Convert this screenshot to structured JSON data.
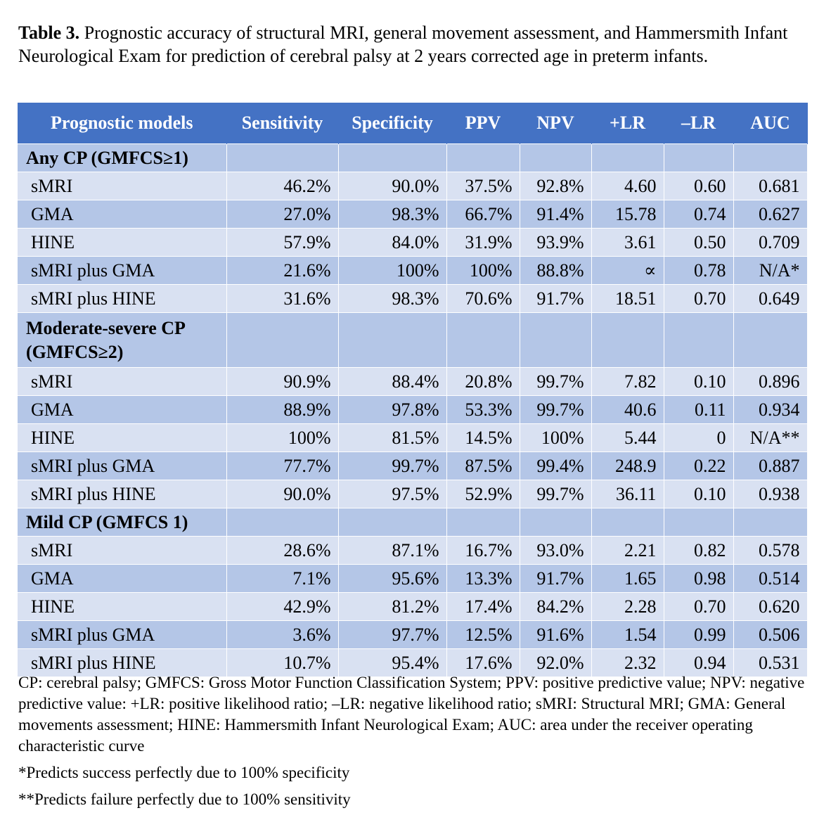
{
  "caption": {
    "label": "Table 3.",
    "text": " Prognostic accuracy of structural MRI, general movement assessment, and Hammersmith Infant Neurological Exam for prediction of cerebral palsy at 2 years corrected age in preterm infants."
  },
  "table": {
    "headers": [
      "Prognostic models",
      "Sensitivity",
      "Specificity",
      "PPV",
      "NPV",
      "+LR",
      "–LR",
      "AUC"
    ],
    "groups": [
      {
        "title": "Any CP (GMFCS≥1)",
        "rows": [
          [
            "sMRI",
            "46.2%",
            "90.0%",
            "37.5%",
            "92.8%",
            "4.60",
            "0.60",
            "0.681"
          ],
          [
            "GMA",
            "27.0%",
            "98.3%",
            "66.7%",
            "91.4%",
            "15.78",
            "0.74",
            "0.627"
          ],
          [
            "HINE",
            "57.9%",
            "84.0%",
            "31.9%",
            "93.9%",
            "3.61",
            "0.50",
            "0.709"
          ],
          [
            "sMRI plus GMA",
            "21.6%",
            "100%",
            "100%",
            "88.8%",
            "∝",
            "0.78",
            "N/A*"
          ],
          [
            "sMRI plus HINE",
            "31.6%",
            "98.3%",
            "70.6%",
            "91.7%",
            "18.51",
            "0.70",
            "0.649"
          ]
        ]
      },
      {
        "title": "Moderate-severe CP (GMFCS≥2)",
        "rows": [
          [
            "sMRI",
            "90.9%",
            "88.4%",
            "20.8%",
            "99.7%",
            "7.82",
            "0.10",
            "0.896"
          ],
          [
            "GMA",
            "88.9%",
            "97.8%",
            "53.3%",
            "99.7%",
            "40.6",
            "0.11",
            "0.934"
          ],
          [
            "HINE",
            "100%",
            "81.5%",
            "14.5%",
            "100%",
            "5.44",
            "0",
            "N/A**"
          ],
          [
            "sMRI plus GMA",
            "77.7%",
            "99.7%",
            "87.5%",
            "99.4%",
            "248.9",
            "0.22",
            "0.887"
          ],
          [
            "sMRI plus HINE",
            "90.0%",
            "97.5%",
            "52.9%",
            "99.7%",
            "36.11",
            "0.10",
            "0.938"
          ]
        ]
      },
      {
        "title": "Mild CP (GMFCS 1)",
        "rows": [
          [
            "sMRI",
            "28.6%",
            "87.1%",
            "16.7%",
            "93.0%",
            "2.21",
            "0.82",
            "0.578"
          ],
          [
            "GMA",
            "7.1%",
            "95.6%",
            "13.3%",
            "91.7%",
            "1.65",
            "0.98",
            "0.514"
          ],
          [
            "HINE",
            "42.9%",
            "81.2%",
            "17.4%",
            "84.2%",
            "2.28",
            "0.70",
            "0.620"
          ],
          [
            "sMRI plus GMA",
            "3.6%",
            "97.7%",
            "12.5%",
            "91.6%",
            "1.54",
            "0.99",
            "0.506"
          ],
          [
            "sMRI plus HINE",
            "10.7%",
            "95.4%",
            "17.6%",
            "92.0%",
            "2.32",
            "0.94",
            "0.531"
          ]
        ]
      }
    ]
  },
  "notes": {
    "abbreviations": "CP: cerebral palsy; GMFCS: Gross Motor Function Classification System; PPV: positive predictive value; NPV: negative predictive value: +LR: positive likelihood ratio; –LR: negative likelihood ratio; sMRI: Structural MRI; GMA: General movements assessment; HINE: Hammersmith Infant Neurological Exam; AUC: area under the receiver operating characteristic curve",
    "footnote1": "*Predicts success perfectly due to 100% specificity",
    "footnote2": "**Predicts failure perfectly due to 100% sensitivity"
  },
  "colors": {
    "header_bg": "#4472c4",
    "row_light": "#d9e1f2",
    "row_dark": "#b4c6e7"
  }
}
